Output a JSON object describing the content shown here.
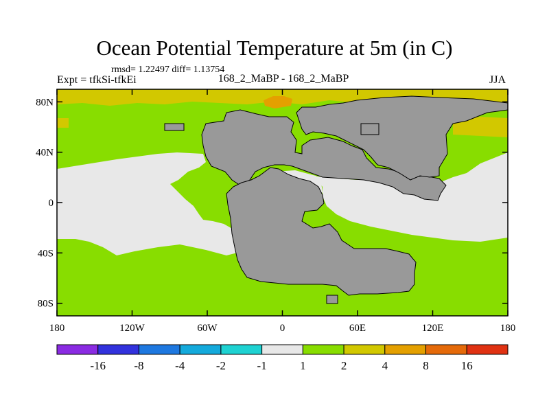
{
  "title": "Ocean Potential Temperature at 5m (in C)",
  "stats": {
    "text": "rmsd= 1.22497 diff= 1.13754"
  },
  "left_label": "Expt = tfkSi-tfkEi",
  "center_label": "168_2_MaBP - 168_2_MaBP",
  "right_label": "JJA",
  "axes": {
    "lat_ticks": [
      {
        "value": 80,
        "label": "80N"
      },
      {
        "value": 40,
        "label": "40N"
      },
      {
        "value": 0,
        "label": "0"
      },
      {
        "value": -40,
        "label": "40S"
      },
      {
        "value": -80,
        "label": "80S"
      }
    ],
    "lon_ticks": [
      {
        "value": -180,
        "label": "180"
      },
      {
        "value": -120,
        "label": "120W"
      },
      {
        "value": -60,
        "label": "60W"
      },
      {
        "value": 0,
        "label": "0"
      },
      {
        "value": 60,
        "label": "60E"
      },
      {
        "value": 120,
        "label": "120E"
      },
      {
        "value": 180,
        "label": "180"
      }
    ],
    "lat_range": [
      -90,
      90
    ],
    "lon_range": [
      -180,
      180
    ]
  },
  "colors": {
    "land": "#999999",
    "c_1_2": "#88dd00",
    "c_2_4": "#d2c800",
    "c_4_8": "#e4a000",
    "c_m1_1": "#e8e8e8"
  },
  "colorbar": {
    "boxes": [
      "#8a2be2",
      "#3232dd",
      "#1e78e0",
      "#14aadc",
      "#1ed2d2",
      "#e8e8e8",
      "#88dd00",
      "#d2c800",
      "#e4a000",
      "#e56a0a",
      "#e03212"
    ],
    "labels": [
      "-16",
      "-8",
      "-4",
      "-2",
      "-1",
      "1",
      "2",
      "4",
      "8",
      "16"
    ]
  }
}
